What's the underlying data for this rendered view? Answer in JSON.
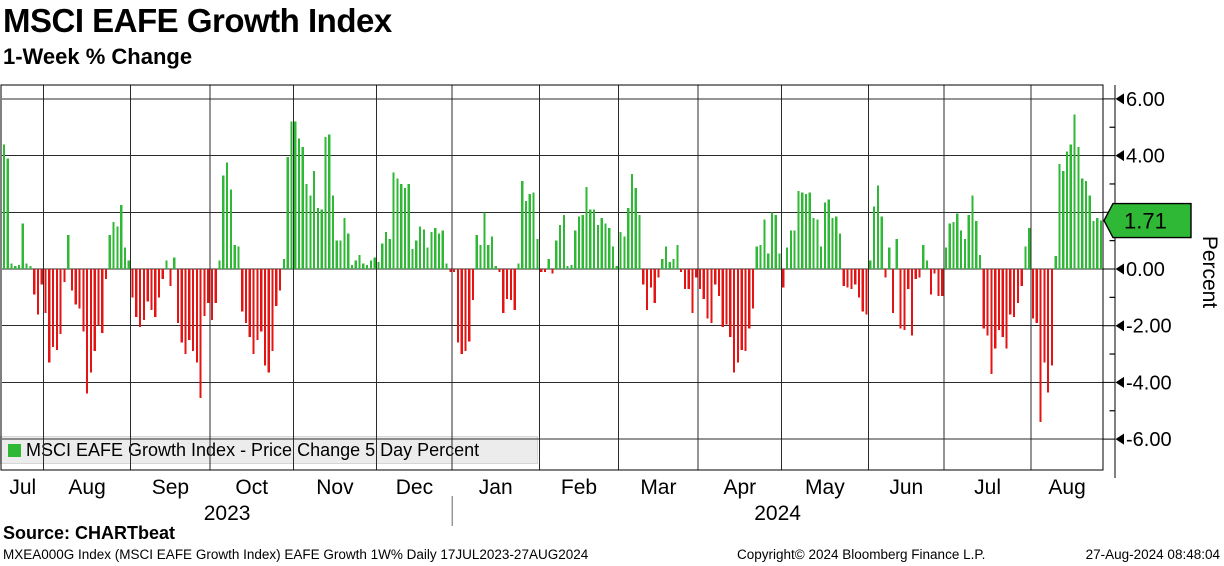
{
  "header": {
    "title": "MSCI EAFE Growth Index",
    "subtitle": "1-Week % Change"
  },
  "legend": {
    "label": "MSCI EAFE Growth Index - Price Change 5 Day Percent",
    "swatch_color": "#2fb835"
  },
  "axis": {
    "y_label": "Percent",
    "y_tick_labels": [
      "6.00",
      "4.00",
      "2.00",
      "0.00",
      "-2.00",
      "-4.00",
      "-6.00"
    ],
    "y_tick_values": [
      6,
      4,
      2,
      0,
      -2,
      -4,
      -6
    ],
    "y_minor_tick_values": [
      5,
      3,
      1,
      -1,
      -3,
      -5
    ],
    "last_value_label": "1.71"
  },
  "footer": {
    "source": "Source: CHARTbeat",
    "meta_left": "MXEA000G Index (MSCI EAFE Growth Index) EAFE Growth 1W%  Daily 17JUL2023-27AUG2024",
    "meta_center": "Copyright© 2024 Bloomberg Finance L.P.",
    "meta_right": "27-Aug-2024 08:48:04"
  },
  "chart_data": {
    "type": "bar",
    "title": "MSCI EAFE Growth Index",
    "subtitle": "1-Week % Change",
    "series_name": "MSCI EAFE Growth Index - Price Change 5 Day Percent",
    "frequency": "Daily",
    "date_range": "17JUL2023-27AUG2024",
    "ylabel": "Percent",
    "ylim": [
      -7.1,
      6.5
    ],
    "grid": true,
    "positive_color": "#2fb835",
    "negative_color": "#e51414",
    "last_value": 1.71,
    "x_months": [
      "Jul",
      "Aug",
      "Sep",
      "Oct",
      "Nov",
      "Dec",
      "Jan",
      "Feb",
      "Mar",
      "Apr",
      "May",
      "Jun",
      "Jul",
      "Aug"
    ],
    "year_labels": [
      "2023",
      "2024"
    ],
    "year_split_month_index": 6,
    "month_start_indices": [
      0,
      11,
      34,
      55,
      77,
      99,
      119,
      142,
      163,
      184,
      206,
      229,
      249,
      272
    ],
    "values": [
      4.4,
      3.9,
      0.2,
      0.1,
      0.15,
      1.6,
      0.2,
      0.1,
      -0.9,
      -1.6,
      -0.55,
      -1.55,
      -3.3,
      -2.75,
      -2.85,
      -2.3,
      -0.45,
      1.2,
      -0.75,
      -1.25,
      -1.4,
      -2.2,
      -4.4,
      -3.65,
      -2.9,
      -2.0,
      -2.25,
      -0.35,
      1.2,
      1.65,
      1.5,
      2.25,
      0.75,
      0.3,
      -1.0,
      -1.7,
      -2.05,
      -1.8,
      -1.15,
      -1.45,
      -1.7,
      -1.0,
      -0.35,
      0.3,
      -0.6,
      0.4,
      -1.9,
      -2.6,
      -3.0,
      -2.5,
      -2.9,
      -3.3,
      -4.55,
      -1.65,
      -1.2,
      -1.8,
      -1.2,
      0.3,
      3.3,
      3.75,
      2.8,
      0.85,
      0.8,
      -1.5,
      -1.9,
      -2.4,
      -3.0,
      -2.5,
      -2.2,
      -3.4,
      -3.65,
      -2.9,
      -1.3,
      -0.75,
      0.35,
      3.95,
      5.2,
      5.2,
      4.6,
      4.3,
      3.0,
      2.6,
      3.45,
      2.15,
      2.1,
      4.65,
      4.75,
      2.6,
      1.0,
      1.0,
      1.8,
      1.25,
      0.15,
      0.3,
      0.5,
      0.2,
      0.15,
      0.3,
      0.4,
      0.25,
      0.9,
      1.3,
      1.05,
      3.4,
      3.2,
      3.0,
      2.85,
      3.0,
      0.7,
      1.0,
      1.5,
      1.4,
      0.75,
      1.3,
      1.45,
      1.25,
      1.35,
      0.2,
      -0.1,
      -0.1,
      -2.6,
      -3.0,
      -2.9,
      -2.55,
      -1.1,
      1.2,
      0.85,
      2.0,
      0.85,
      1.15,
      0.1,
      -0.1,
      -1.55,
      -1.05,
      -1.1,
      -1.45,
      0.2,
      3.1,
      2.4,
      2.65,
      2.7,
      1.05,
      -0.1,
      -0.1,
      0.35,
      -0.15,
      1.0,
      1.55,
      1.9,
      0.1,
      0.15,
      1.35,
      1.85,
      1.9,
      2.9,
      2.1,
      2.1,
      1.55,
      1.8,
      1.6,
      1.45,
      0.8,
      0.1,
      1.3,
      1.15,
      2.15,
      3.35,
      2.85,
      1.9,
      -0.55,
      -1.45,
      -0.65,
      -1.2,
      -0.3,
      0.35,
      0.8,
      0.25,
      0.35,
      0.85,
      -0.1,
      -0.7,
      -0.7,
      -1.55,
      -0.3,
      -0.7,
      -1.05,
      -1.75,
      -1.9,
      -0.55,
      -0.95,
      -2.05,
      -1.95,
      -2.4,
      -3.65,
      -3.3,
      -2.85,
      -2.9,
      -2.1,
      -1.4,
      0.8,
      0.85,
      1.75,
      0.55,
      2.0,
      1.9,
      0.55,
      -0.65,
      0.75,
      1.35,
      1.35,
      2.75,
      2.7,
      2.65,
      2.7,
      1.8,
      1.75,
      0.8,
      2.35,
      2.45,
      1.8,
      1.85,
      1.25,
      -0.6,
      -0.65,
      -0.7,
      -0.55,
      -1.0,
      -1.5,
      -1.6,
      0.3,
      2.2,
      2.95,
      1.85,
      -0.3,
      0.75,
      -1.55,
      1.05,
      -2.1,
      -2.15,
      -0.7,
      -2.35,
      -0.35,
      -0.3,
      0.85,
      0.3,
      -0.9,
      -0.15,
      -0.95,
      -0.95,
      0.75,
      1.6,
      1.65,
      1.95,
      1.35,
      1.05,
      1.9,
      2.6,
      1.7,
      0.5,
      -2.1,
      -2.35,
      -3.7,
      -2.8,
      -2.15,
      -2.4,
      -2.8,
      -1.6,
      -1.7,
      -1.2,
      -0.6,
      0.8,
      1.45,
      -1.75,
      -1.9,
      -5.4,
      -3.3,
      -4.35,
      -3.4,
      0.45,
      3.7,
      3.45,
      4.15,
      4.4,
      5.45,
      4.3,
      3.2,
      3.1,
      2.6,
      1.7,
      1.8,
      1.71
    ]
  }
}
